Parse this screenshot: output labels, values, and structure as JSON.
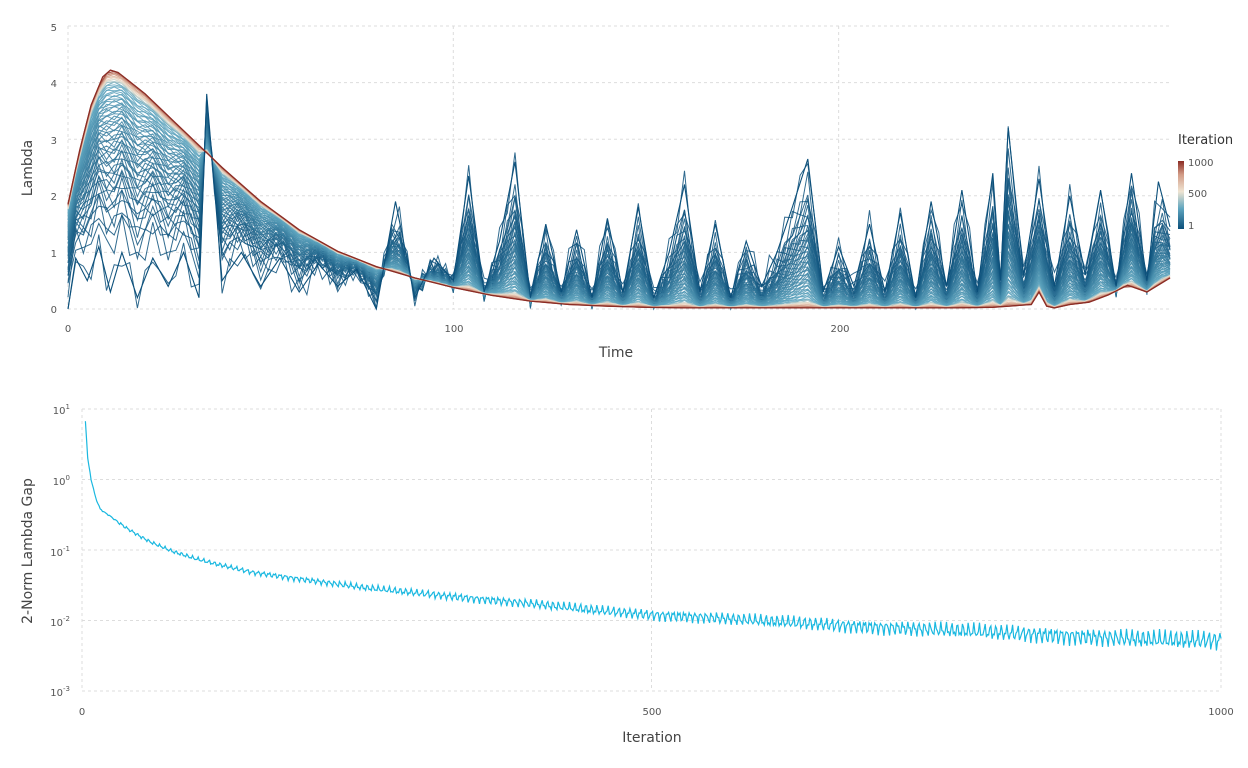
{
  "chart_data": [
    {
      "type": "line",
      "xlabel": "Time",
      "ylabel": "Lambda",
      "xlim": [
        0,
        286
      ],
      "ylim": [
        0,
        5
      ],
      "x_ticks": [
        "0",
        "100",
        "200"
      ],
      "x_tick_values": [
        0,
        100,
        200
      ],
      "y_ticks": [
        "0",
        "1",
        "2",
        "3",
        "4",
        "5"
      ],
      "y_tick_values": [
        0,
        1,
        2,
        3,
        4,
        5
      ],
      "grid": true,
      "series_count": 1000,
      "series_description_note_removed": true,
      "final_profile": {
        "x": [
          0,
          3,
          6,
          9,
          11,
          13,
          20,
          30,
          40,
          50,
          60,
          70,
          80,
          90,
          100,
          110,
          120,
          130,
          140,
          150,
          160,
          170,
          180,
          190,
          200,
          210,
          220,
          230,
          240,
          250,
          252,
          254,
          256,
          260,
          265,
          270,
          275,
          280,
          286
        ],
        "y": [
          1.85,
          2.8,
          3.6,
          4.1,
          4.22,
          4.18,
          3.8,
          3.15,
          2.5,
          1.9,
          1.4,
          1.02,
          0.75,
          0.55,
          0.38,
          0.24,
          0.14,
          0.08,
          0.05,
          0.03,
          0.02,
          0.02,
          0.02,
          0.02,
          0.02,
          0.02,
          0.02,
          0.02,
          0.03,
          0.08,
          0.3,
          0.05,
          0.02,
          0.08,
          0.12,
          0.25,
          0.42,
          0.3,
          0.55
        ]
      },
      "first_iteration_profile": {
        "x": [
          0,
          2,
          5,
          8,
          11,
          14,
          18,
          22,
          26,
          30,
          34,
          36,
          40,
          45,
          50,
          55,
          60,
          65,
          70,
          75,
          80,
          85,
          90,
          95,
          100,
          104,
          108,
          112,
          116,
          120,
          124,
          128,
          132,
          136,
          140,
          144,
          148,
          152,
          156,
          160,
          164,
          168,
          172,
          176,
          180,
          184,
          188,
          192,
          196,
          200,
          204,
          208,
          212,
          216,
          220,
          224,
          228,
          232,
          236,
          240,
          242,
          244,
          248,
          252,
          256,
          260,
          264,
          268,
          272,
          276,
          280,
          283,
          286
        ],
        "y": [
          0.0,
          0.9,
          0.5,
          1.1,
          0.3,
          1.0,
          0.2,
          0.9,
          0.4,
          1.0,
          0.2,
          3.8,
          0.5,
          1.0,
          0.4,
          0.9,
          0.3,
          0.8,
          0.4,
          0.7,
          0.0,
          1.9,
          0.2,
          0.9,
          0.5,
          2.35,
          0.3,
          1.2,
          2.6,
          0.2,
          1.5,
          0.3,
          1.4,
          0.2,
          1.6,
          0.3,
          1.8,
          0.2,
          1.0,
          2.2,
          0.3,
          1.5,
          0.2,
          1.2,
          0.4,
          1.0,
          1.8,
          2.65,
          0.3,
          1.1,
          0.4,
          1.5,
          0.3,
          1.7,
          0.2,
          1.9,
          0.4,
          2.1,
          0.3,
          2.4,
          0.5,
          3.2,
          0.6,
          2.3,
          0.4,
          2.0,
          0.6,
          2.1,
          0.4,
          2.4,
          0.5,
          2.25,
          1.45
        ]
      }
    },
    {
      "type": "line",
      "xlabel": "Iteration",
      "ylabel": "2-Norm Lambda Gap",
      "xlim": [
        0,
        1000
      ],
      "ylim_log10": [
        -3,
        1
      ],
      "y_scale": "log",
      "x_ticks": [
        "0",
        "500",
        "1000"
      ],
      "x_tick_values": [
        0,
        500,
        1000
      ],
      "y_tick_bases": [
        "10",
        "10",
        "10",
        "10",
        "10"
      ],
      "y_tick_exponents": [
        "1",
        "0",
        "-1",
        "-2",
        "-3"
      ],
      "y_tick_values": [
        10,
        1,
        0.1,
        0.01,
        0.001
      ],
      "grid": true,
      "color": "#1ab8e0",
      "x": [
        3,
        5,
        8,
        12,
        16,
        20,
        25,
        30,
        40,
        50,
        60,
        80,
        100,
        120,
        150,
        200,
        250,
        300,
        350,
        400,
        450,
        500,
        550,
        600,
        650,
        700,
        750,
        800,
        850,
        900,
        950,
        1000
      ],
      "y": [
        6.8,
        2.0,
        1.0,
        0.55,
        0.38,
        0.34,
        0.3,
        0.26,
        0.2,
        0.16,
        0.13,
        0.095,
        0.075,
        0.062,
        0.048,
        0.037,
        0.029,
        0.024,
        0.02,
        0.017,
        0.014,
        0.012,
        0.011,
        0.0098,
        0.0088,
        0.008,
        0.0074,
        0.0068,
        0.0062,
        0.0057,
        0.0053,
        0.0052
      ]
    }
  ],
  "legend": {
    "title": "Iteration",
    "ticks": [
      "1000",
      "500",
      "1"
    ],
    "colors": [
      "#053061",
      "#2166ac",
      "#4393c3",
      "#92c5de",
      "#f7f7f7",
      "#f4a582",
      "#b2182b",
      "#67001f"
    ]
  }
}
